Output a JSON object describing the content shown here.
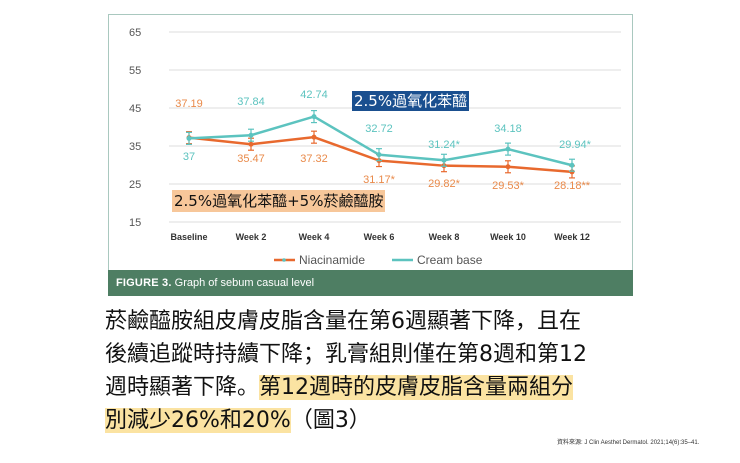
{
  "figure": {
    "caption_bold": "FIGURE 3.",
    "caption_text": " Graph of sebum casual level",
    "overlay_cream_label": "2.5%過氧化苯醯",
    "overlay_niacinamide_label": "2.5%過氧化苯醯+5%菸鹼醯胺"
  },
  "chart_data": {
    "type": "line",
    "title": "Graph of sebum casual level",
    "xlabel": "",
    "ylabel": "",
    "ylim": [
      15,
      65
    ],
    "yticks": [
      65,
      55,
      45,
      35,
      25,
      15
    ],
    "grid": true,
    "legend_position": "bottom",
    "categories": [
      "Baseline",
      "Week 2",
      "Week 4",
      "Week 6",
      "Week 8",
      "Week 10",
      "Week 12"
    ],
    "series": [
      {
        "name": "Niacinamide",
        "color": "#e8692e",
        "values": [
          37.19,
          35.47,
          37.32,
          31.17,
          29.82,
          29.53,
          28.18
        ],
        "labels": [
          "37.19",
          "35.47",
          "37.32",
          "31.17*",
          "29.82*",
          "29.53*",
          "28.18**"
        ]
      },
      {
        "name": "Cream base",
        "color": "#5cc3bf",
        "values": [
          37,
          37.84,
          42.74,
          32.72,
          31.24,
          34.18,
          29.94
        ],
        "labels": [
          "37",
          "37.84",
          "42.74",
          "32.72",
          "31.24*",
          "34.18",
          "29.94*"
        ]
      }
    ]
  },
  "text": {
    "line1": "菸鹼醯胺組皮膚皮脂含量在第6週顯著下降，且在",
    "line2": "後續追蹤時持續下降；乳膏組則僅在第8週和第12",
    "line3_plain": "週時顯著下降。",
    "line3_highlight": "第12週時的皮膚皮脂含量兩組分",
    "line4_highlight": "別減少26%和20%",
    "line4_plain": "（圖3）",
    "source": "資料來源: J Clin Aesthet Dermatol. 2021;14(6):35–41."
  }
}
